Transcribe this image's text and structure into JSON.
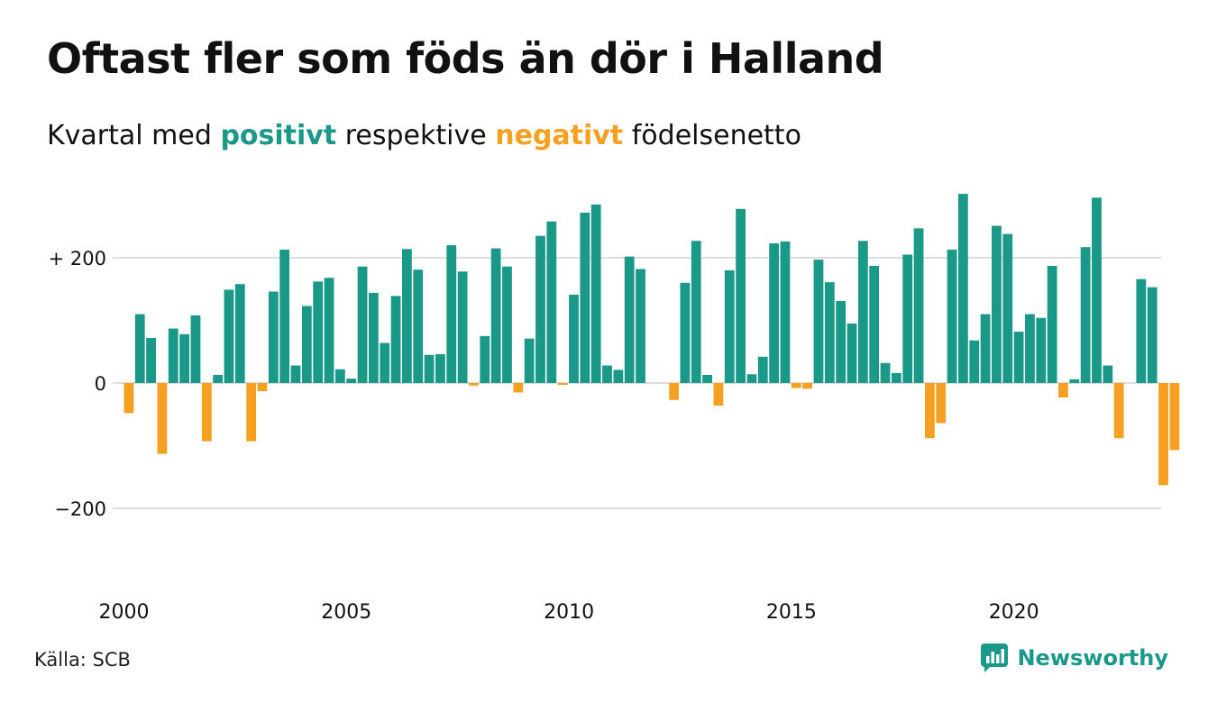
{
  "title": "Oftast fler som föds än dör i Halland",
  "subtitle": {
    "prefix": "Kvartal med",
    "positive_word": "positivt",
    "middle": "respektive",
    "negative_word": "negativt",
    "suffix": "födelsenetto"
  },
  "colors": {
    "positive": "#1a9988",
    "negative": "#f5a020",
    "grid": "#dddddd"
  },
  "source": "Källa: SCB",
  "brand": {
    "name": "Newsworthy",
    "icon": "chart-bubble-icon"
  },
  "chart_data": {
    "type": "bar",
    "start_year": 2000,
    "quarters_per_year": 4,
    "ylim": [
      -300,
      300
    ],
    "yticks": [
      {
        "value": 200,
        "label": "+ 200"
      },
      {
        "value": 0,
        "label": "0"
      },
      {
        "value": -200,
        "label": "−200"
      }
    ],
    "xticks": [
      {
        "year": 2000,
        "label": "2000"
      },
      {
        "year": 2005,
        "label": "2005"
      },
      {
        "year": 2010,
        "label": "2010"
      },
      {
        "year": 2015,
        "label": "2015"
      },
      {
        "year": 2020,
        "label": "2020"
      }
    ],
    "grid": true,
    "values": [
      -48,
      110,
      72,
      -113,
      87,
      78,
      108,
      -93,
      13,
      149,
      158,
      -93,
      -13,
      146,
      213,
      28,
      123,
      162,
      168,
      22,
      7,
      186,
      144,
      64,
      139,
      214,
      181,
      45,
      46,
      220,
      178,
      -4,
      75,
      215,
      186,
      -15,
      71,
      235,
      258,
      -3,
      141,
      272,
      285,
      28,
      21,
      202,
      182,
      0,
      0,
      -27,
      160,
      227,
      13,
      -36,
      180,
      278,
      14,
      42,
      223,
      226,
      -8,
      -9,
      197,
      161,
      131,
      95,
      227,
      187,
      32,
      16,
      205,
      247,
      -88,
      -64,
      213,
      302,
      68,
      110,
      251,
      238,
      82,
      110,
      104,
      187,
      -23,
      6,
      217,
      296,
      28,
      -88,
      0,
      166,
      153,
      -163,
      -107
    ]
  }
}
